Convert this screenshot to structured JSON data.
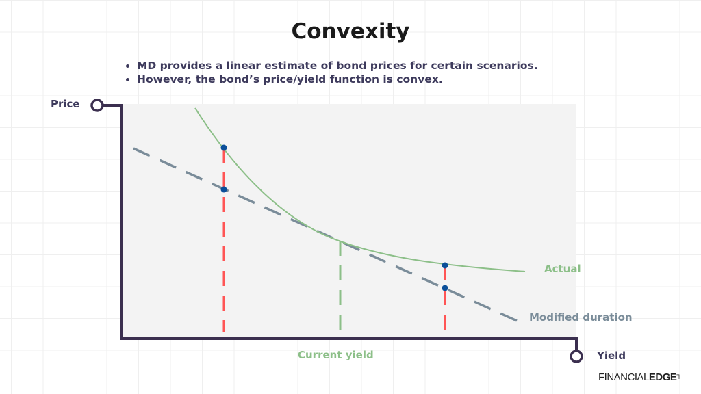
{
  "title": "Convexity",
  "bullets": [
    "MD provides a linear estimate of bond prices for certain scenarios.",
    "However, the bond’s price/yield function is convex."
  ],
  "axes": {
    "y_label": "Price",
    "x_label": "Yield"
  },
  "curves": {
    "actual": "Actual",
    "modified_duration": "Modified duration",
    "current_yield": "Current yield"
  },
  "colors": {
    "actual": "#8cbf88",
    "modified_duration": "#7a8c99",
    "scenario": "#ff5555",
    "point": "#0b4f99",
    "axis": "#3b2f4f",
    "current_yield": "#8cbf88"
  },
  "logo": {
    "light": "FINANCIAL",
    "bold": "EDGE"
  }
}
